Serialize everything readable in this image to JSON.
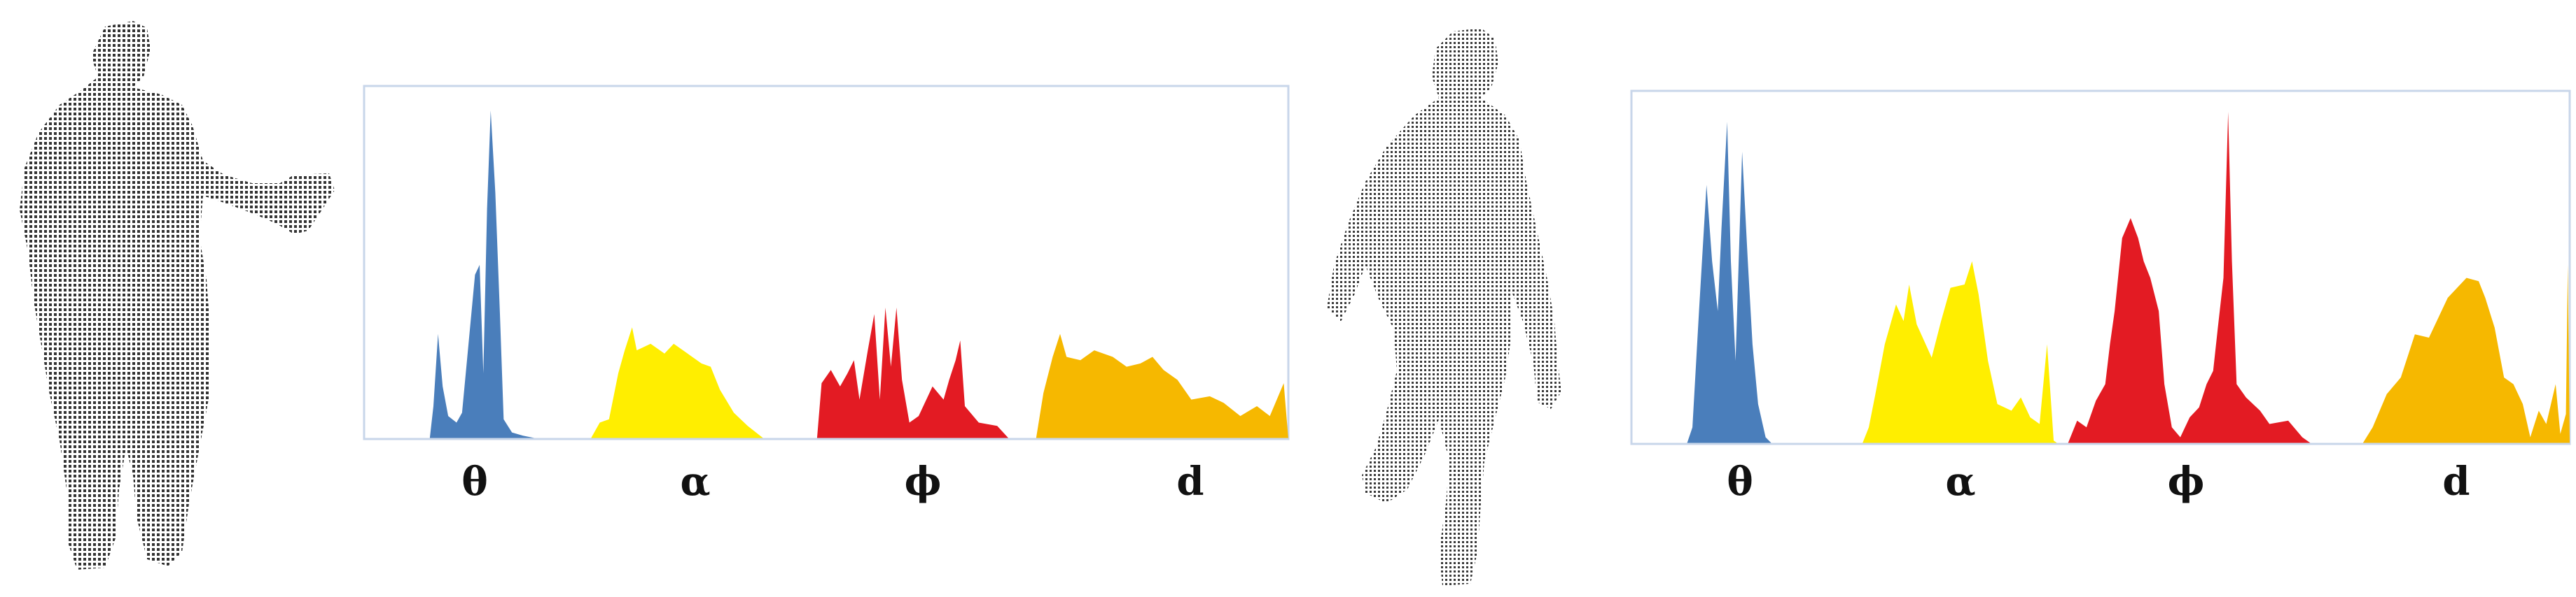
{
  "colors": {
    "theta": "#4a7ebb",
    "alpha": "#ffee00",
    "phi": "#e31b23",
    "d": "#f6b800",
    "frame": "#c8d6ea",
    "points": "#3a3a3a"
  },
  "chart_data": [
    {
      "type": "area",
      "title": "",
      "xlabel": "",
      "ylabel": "",
      "x_range": [
        0,
        100
      ],
      "ylim": [
        0,
        1
      ],
      "grid": false,
      "segments": [
        {
          "label": "θ",
          "color": "#4a7ebb",
          "points": [
            [
              7.1,
              0
            ],
            [
              7.5,
              0.1
            ],
            [
              8.0,
              0.32
            ],
            [
              8.5,
              0.16
            ],
            [
              9.1,
              0.07
            ],
            [
              10.0,
              0.05
            ],
            [
              10.6,
              0.08
            ],
            [
              11.5,
              0.35
            ],
            [
              12.0,
              0.5
            ],
            [
              12.5,
              0.53
            ],
            [
              12.9,
              0.2
            ],
            [
              13.3,
              0.7
            ],
            [
              13.7,
              1.0
            ],
            [
              14.2,
              0.75
            ],
            [
              14.7,
              0.38
            ],
            [
              15.1,
              0.06
            ],
            [
              16.0,
              0.02
            ],
            [
              17.2,
              0.01
            ],
            [
              19.0,
              0
            ]
          ]
        },
        {
          "label": "α",
          "color": "#ffee00",
          "points": [
            [
              24.5,
              0
            ],
            [
              25.5,
              0.05
            ],
            [
              26.5,
              0.06
            ],
            [
              27.5,
              0.2
            ],
            [
              28.2,
              0.27
            ],
            [
              29.0,
              0.34
            ],
            [
              29.5,
              0.27
            ],
            [
              31.0,
              0.29
            ],
            [
              32.5,
              0.26
            ],
            [
              33.5,
              0.29
            ],
            [
              35.0,
              0.26
            ],
            [
              36.5,
              0.23
            ],
            [
              37.5,
              0.22
            ],
            [
              38.5,
              0.15
            ],
            [
              40.0,
              0.08
            ],
            [
              41.5,
              0.04
            ],
            [
              43.3,
              0
            ]
          ]
        },
        {
          "label": "ϕ",
          "color": "#e31b23",
          "points": [
            [
              49.0,
              0
            ],
            [
              49.5,
              0.17
            ],
            [
              50.5,
              0.21
            ],
            [
              51.5,
              0.16
            ],
            [
              52.3,
              0.2
            ],
            [
              53.0,
              0.24
            ],
            [
              53.6,
              0.12
            ],
            [
              54.5,
              0.27
            ],
            [
              55.2,
              0.38
            ],
            [
              55.8,
              0.12
            ],
            [
              56.4,
              0.4
            ],
            [
              57.0,
              0.22
            ],
            [
              57.6,
              0.4
            ],
            [
              58.2,
              0.18
            ],
            [
              59.0,
              0.05
            ],
            [
              60.0,
              0.07
            ],
            [
              61.5,
              0.16
            ],
            [
              62.7,
              0.12
            ],
            [
              63.3,
              0.18
            ],
            [
              64.0,
              0.24
            ],
            [
              64.5,
              0.3
            ],
            [
              65.0,
              0.1
            ],
            [
              66.5,
              0.05
            ],
            [
              68.5,
              0.04
            ],
            [
              69.8,
              0
            ]
          ]
        },
        {
          "label": "d",
          "color": "#f6b800",
          "points": [
            [
              72.7,
              0
            ],
            [
              73.5,
              0.14
            ],
            [
              74.5,
              0.25
            ],
            [
              75.3,
              0.32
            ],
            [
              76.0,
              0.25
            ],
            [
              77.5,
              0.24
            ],
            [
              79.0,
              0.27
            ],
            [
              81.0,
              0.25
            ],
            [
              82.5,
              0.22
            ],
            [
              84.0,
              0.23
            ],
            [
              85.3,
              0.25
            ],
            [
              86.5,
              0.21
            ],
            [
              88.0,
              0.18
            ],
            [
              89.5,
              0.12
            ],
            [
              91.5,
              0.13
            ],
            [
              93.0,
              0.11
            ],
            [
              94.8,
              0.07
            ],
            [
              96.6,
              0.1
            ],
            [
              98.0,
              0.07
            ],
            [
              99.5,
              0.17
            ],
            [
              100,
              0
            ]
          ]
        }
      ],
      "category_labels": [
        "θ",
        "α",
        "ϕ",
        "d"
      ]
    },
    {
      "type": "area",
      "title": "",
      "xlabel": "",
      "ylabel": "",
      "x_range": [
        0,
        100
      ],
      "ylim": [
        0,
        1
      ],
      "grid": false,
      "segments": [
        {
          "label": "θ",
          "color": "#4a7ebb",
          "points": [
            [
              5.9,
              0
            ],
            [
              6.5,
              0.05
            ],
            [
              7.2,
              0.4
            ],
            [
              8.0,
              0.78
            ],
            [
              8.6,
              0.55
            ],
            [
              9.2,
              0.4
            ],
            [
              9.6,
              0.65
            ],
            [
              10.2,
              0.97
            ],
            [
              10.6,
              0.55
            ],
            [
              11.1,
              0.25
            ],
            [
              11.8,
              0.88
            ],
            [
              12.4,
              0.55
            ],
            [
              12.9,
              0.3
            ],
            [
              13.5,
              0.12
            ],
            [
              14.3,
              0.02
            ],
            [
              15.0,
              0
            ]
          ]
        },
        {
          "label": "α",
          "color": "#ffee00",
          "points": [
            [
              24.6,
              0
            ],
            [
              25.3,
              0.05
            ],
            [
              26.0,
              0.15
            ],
            [
              27.0,
              0.3
            ],
            [
              28.2,
              0.42
            ],
            [
              29.0,
              0.37
            ],
            [
              29.6,
              0.48
            ],
            [
              30.4,
              0.36
            ],
            [
              31.2,
              0.31
            ],
            [
              32.0,
              0.26
            ],
            [
              33.0,
              0.37
            ],
            [
              34.0,
              0.47
            ],
            [
              35.5,
              0.48
            ],
            [
              36.3,
              0.55
            ],
            [
              37.0,
              0.45
            ],
            [
              38.0,
              0.25
            ],
            [
              39.0,
              0.12
            ],
            [
              40.5,
              0.1
            ],
            [
              41.5,
              0.14
            ],
            [
              42.5,
              0.08
            ],
            [
              43.5,
              0.06
            ],
            [
              44.3,
              0.3
            ],
            [
              45.0,
              0.01
            ],
            [
              45.5,
              0
            ]
          ]
        },
        {
          "label": "ϕ",
          "color": "#e31b23",
          "points": [
            [
              46.5,
              0
            ],
            [
              47.5,
              0.07
            ],
            [
              48.5,
              0.05
            ],
            [
              49.5,
              0.13
            ],
            [
              50.5,
              0.18
            ],
            [
              51.0,
              0.3
            ],
            [
              51.5,
              0.4
            ],
            [
              52.3,
              0.62
            ],
            [
              53.2,
              0.68
            ],
            [
              54.0,
              0.62
            ],
            [
              54.6,
              0.55
            ],
            [
              55.3,
              0.5
            ],
            [
              56.2,
              0.4
            ],
            [
              56.8,
              0.18
            ],
            [
              57.6,
              0.05
            ],
            [
              58.5,
              0.02
            ],
            [
              59.5,
              0.08
            ],
            [
              60.5,
              0.11
            ],
            [
              61.3,
              0.18
            ],
            [
              62.0,
              0.22
            ],
            [
              62.5,
              0.35
            ],
            [
              63.1,
              0.5
            ],
            [
              63.6,
              1.0
            ],
            [
              64.0,
              0.55
            ],
            [
              64.5,
              0.18
            ],
            [
              65.5,
              0.14
            ],
            [
              67.0,
              0.1
            ],
            [
              68.0,
              0.06
            ],
            [
              70.0,
              0.07
            ],
            [
              71.5,
              0.02
            ],
            [
              72.5,
              0
            ]
          ]
        },
        {
          "label": "d",
          "color": "#f6b800",
          "points": [
            [
              77.9,
              0
            ],
            [
              79.0,
              0.05
            ],
            [
              80.5,
              0.15
            ],
            [
              82.0,
              0.2
            ],
            [
              83.5,
              0.33
            ],
            [
              85.0,
              0.32
            ],
            [
              86.0,
              0.38
            ],
            [
              87.0,
              0.44
            ],
            [
              88.0,
              0.47
            ],
            [
              89.0,
              0.5
            ],
            [
              90.3,
              0.49
            ],
            [
              91.0,
              0.44
            ],
            [
              92.0,
              0.35
            ],
            [
              93.0,
              0.2
            ],
            [
              94.0,
              0.18
            ],
            [
              95.0,
              0.12
            ],
            [
              95.8,
              0.02
            ],
            [
              96.7,
              0.1
            ],
            [
              97.5,
              0.06
            ],
            [
              98.5,
              0.18
            ],
            [
              99.0,
              0.03
            ],
            [
              99.6,
              0.09
            ],
            [
              99.8,
              0.54
            ],
            [
              100,
              0
            ]
          ]
        }
      ],
      "category_labels": [
        "θ",
        "α",
        "ϕ",
        "d"
      ]
    }
  ]
}
